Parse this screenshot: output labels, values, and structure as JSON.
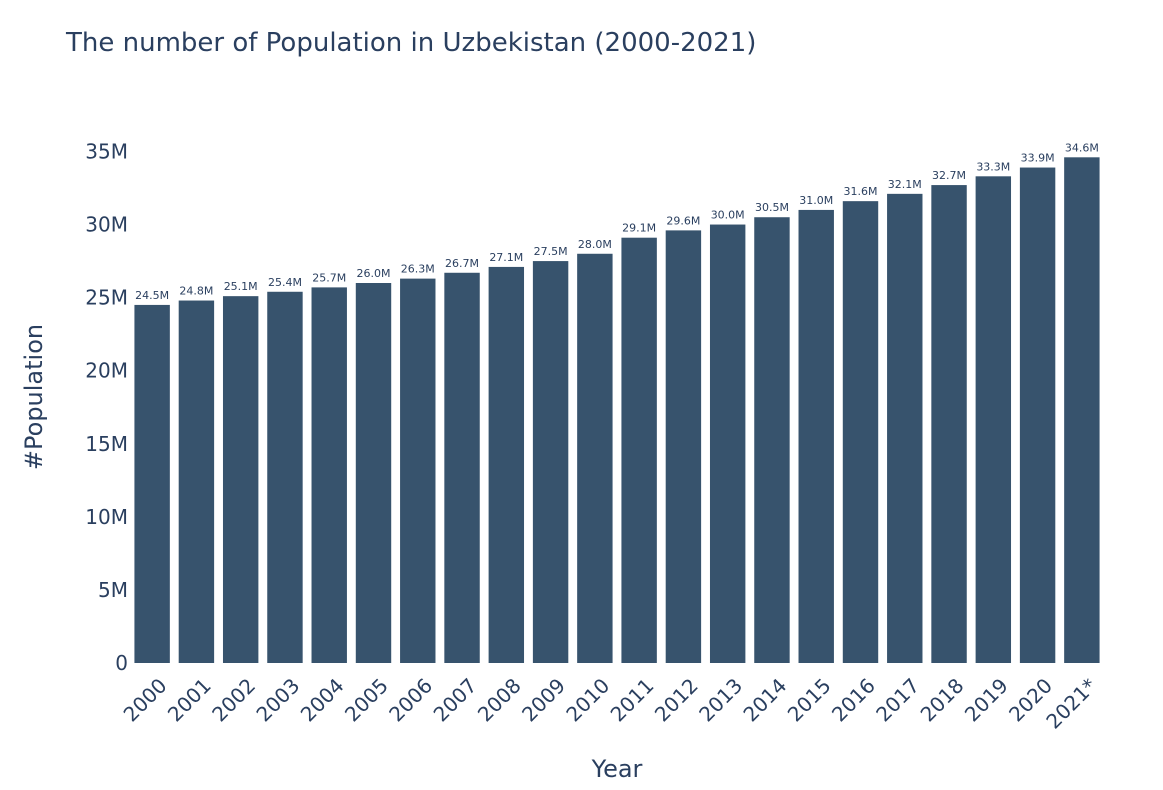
{
  "chart_data": {
    "type": "bar",
    "title": "The number of Population in Uzbekistan (2000-2021)",
    "xlabel": "Year",
    "ylabel": "#Population",
    "categories": [
      "2000",
      "2001",
      "2002",
      "2003",
      "2004",
      "2005",
      "2006",
      "2007",
      "2008",
      "2009",
      "2010",
      "2011",
      "2012",
      "2013",
      "2014",
      "2015",
      "2016",
      "2017",
      "2018",
      "2019",
      "2020",
      "2021*"
    ],
    "values": [
      24.5,
      24.8,
      25.1,
      25.4,
      25.7,
      26.0,
      26.3,
      26.7,
      27.1,
      27.5,
      28.0,
      29.1,
      29.6,
      30.0,
      30.5,
      31.0,
      31.6,
      32.1,
      32.7,
      33.3,
      33.9,
      34.6
    ],
    "value_unit": "M",
    "data_labels": [
      "24.5M",
      "24.8M",
      "25.1M",
      "25.4M",
      "25.7M",
      "26.0M",
      "26.3M",
      "26.7M",
      "27.1M",
      "27.5M",
      "28.0M",
      "29.1M",
      "29.6M",
      "30.0M",
      "30.5M",
      "31.0M",
      "31.6M",
      "32.1M",
      "32.7M",
      "33.3M",
      "33.9M",
      "34.6M"
    ],
    "y_ticks": [
      0,
      5,
      10,
      15,
      20,
      25,
      30,
      35
    ],
    "y_tick_labels": [
      "0",
      "5M",
      "10M",
      "15M",
      "20M",
      "25M",
      "30M",
      "35M"
    ],
    "ylim": [
      0,
      35
    ],
    "grid": false,
    "legend": "none",
    "bar_color": "#37536d"
  }
}
